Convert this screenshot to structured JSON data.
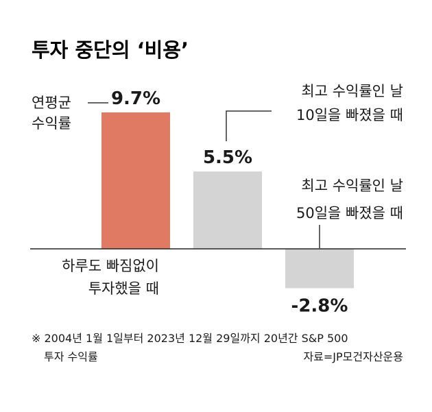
{
  "chart_data": {
    "type": "bar",
    "title": "투자 중단의 ‘비용’",
    "categories": [
      "하루도 빠짐없이 투자했을 때",
      "최고 수익률인 날 10일을 빠졌을 때",
      "최고 수익률인 날 50일을 빠졌을 때"
    ],
    "series": [
      {
        "values": [
          9.7,
          5.5,
          -2.8
        ]
      }
    ],
    "value_labels": [
      "9.7%",
      "5.5%",
      "-2.8%"
    ],
    "colors": [
      "#e07a62",
      "#d4d4d4",
      "#d4d4d4"
    ],
    "ylim": [
      -3.5,
      10.5
    ],
    "annotations": {
      "avg_label": [
        "연평균",
        "수익률"
      ],
      "bar1_label": [
        "하루도 빠짐없이",
        "투자했을 때"
      ],
      "bar2_label": [
        "최고 수익률인 날",
        "10일을 빠졌을 때"
      ],
      "bar3_label": [
        "최고 수익률인 날",
        "50일을 빠졌을 때"
      ]
    },
    "footnote": [
      "※ 2004년 1월 1일부터 2023년 12월 29일까지 20년간 S&P 500",
      "투자 수익률"
    ],
    "source": "자료=JP모건자산운용"
  }
}
